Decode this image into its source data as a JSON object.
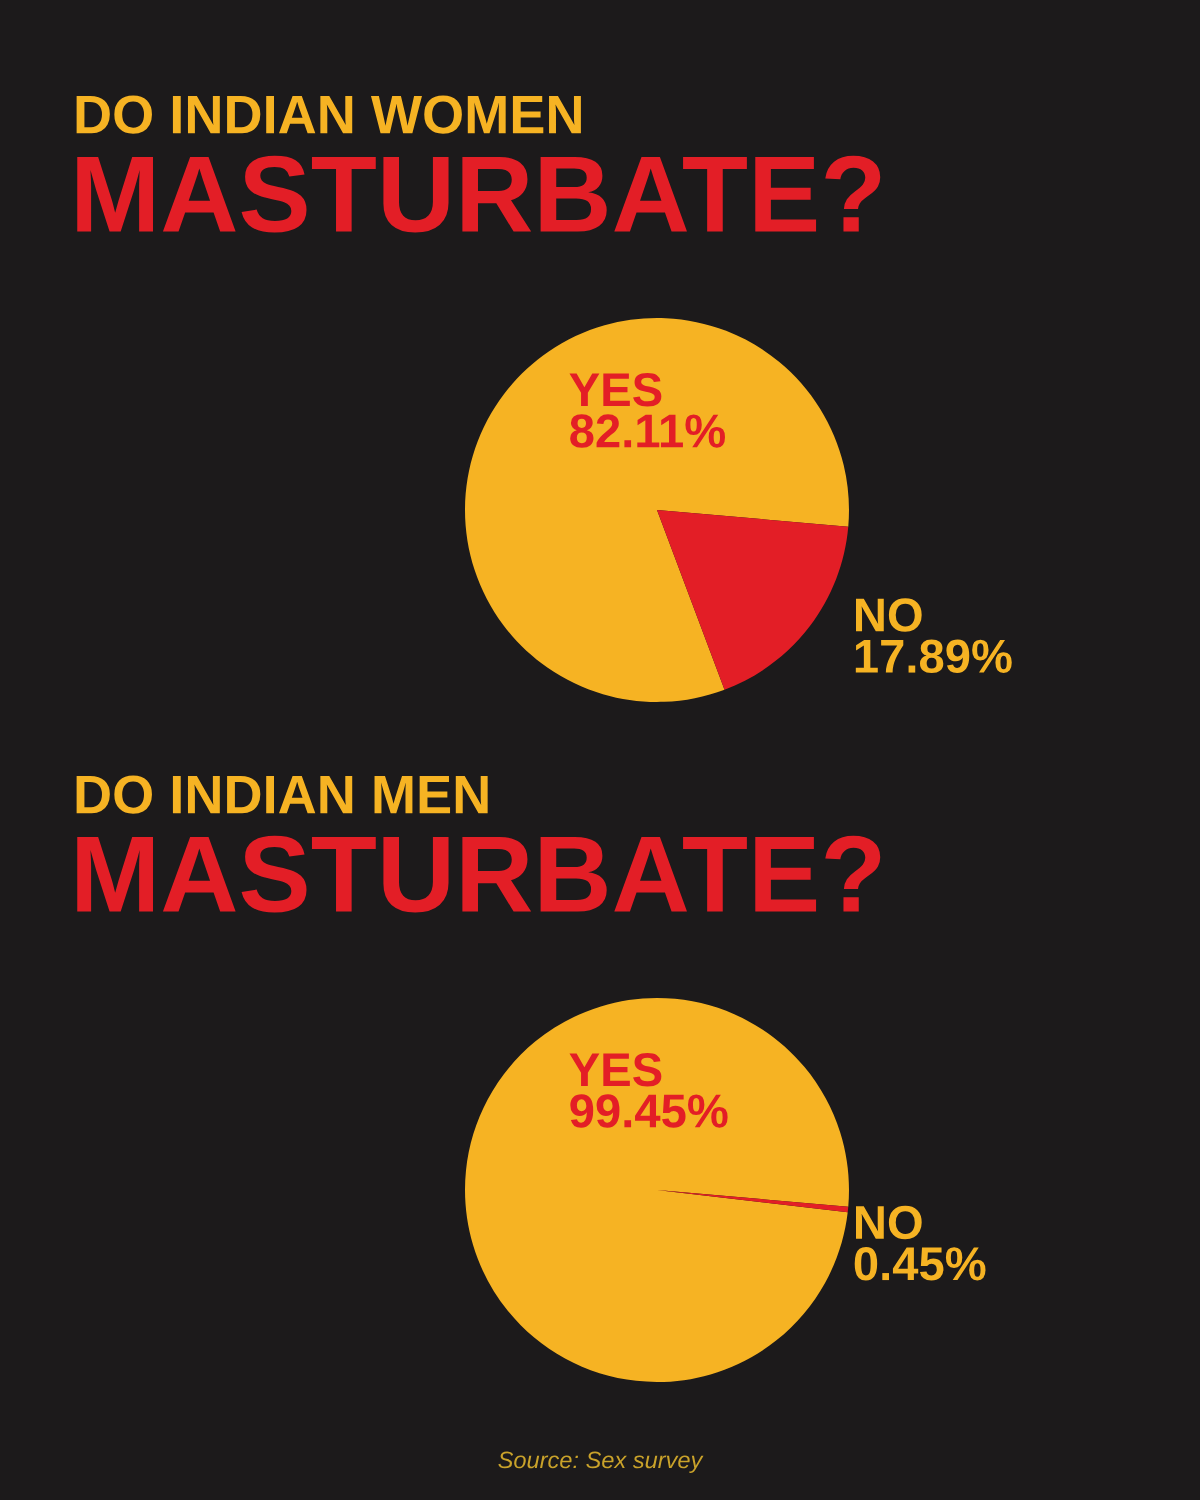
{
  "chart_data": [
    {
      "type": "pie",
      "title": "DO INDIAN WOMEN",
      "subtitle": "MASTURBATE?",
      "categories": [
        "YES",
        "NO"
      ],
      "values": [
        82.11,
        17.89
      ],
      "value_labels": [
        "82.11%",
        "17.89%"
      ],
      "colors": [
        "#f6b323",
        "#e31e26"
      ]
    },
    {
      "type": "pie",
      "title": "DO INDIAN MEN",
      "subtitle": "MASTURBATE?",
      "categories": [
        "YES",
        "NO"
      ],
      "values": [
        99.45,
        0.45
      ],
      "value_labels": [
        "99.45%",
        "0.45%"
      ],
      "colors": [
        "#f6b323",
        "#e31e26"
      ],
      "annotations": [
        "Source: Sex survey"
      ]
    }
  ]
}
